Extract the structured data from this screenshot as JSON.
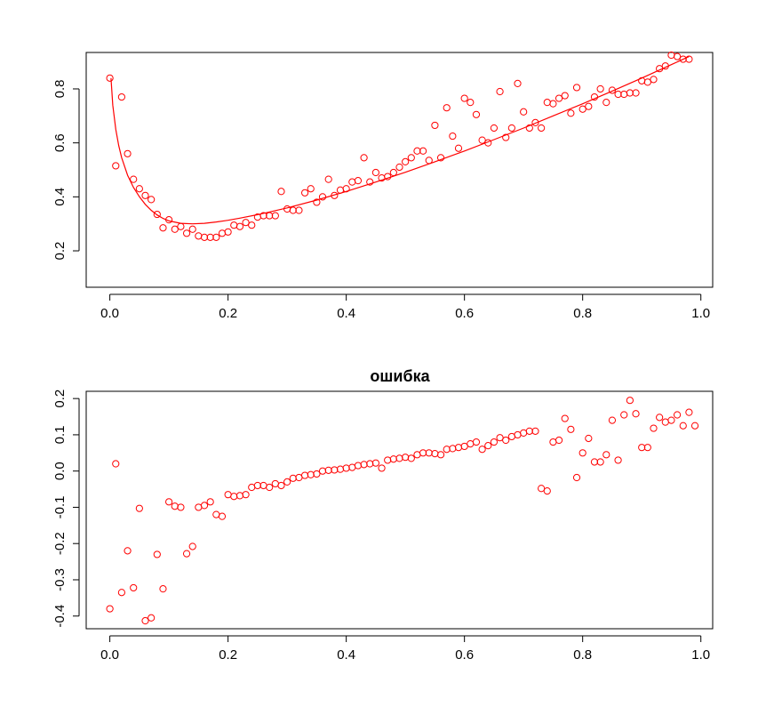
{
  "chart_data": [
    {
      "type": "scatter",
      "title": "",
      "xlabel": "",
      "ylabel": "",
      "xlim": [
        -0.04,
        1.02
      ],
      "ylim": [
        0.065,
        0.935
      ],
      "xticks": [
        "0.0",
        "0.2",
        "0.4",
        "0.6",
        "0.8",
        "1.0"
      ],
      "yticks": [
        "0.2",
        "0.4",
        "0.6",
        "0.8"
      ],
      "xtick_values": [
        0,
        0.2,
        0.4,
        0.6,
        0.8,
        1.0
      ],
      "ytick_values": [
        0.2,
        0.4,
        0.6,
        0.8
      ],
      "grid": false,
      "legend": "none",
      "color": "#ff0000",
      "series": [
        {
          "kind": "points",
          "x": [
            0.0,
            0.01,
            0.02,
            0.03,
            0.04,
            0.05,
            0.06,
            0.07,
            0.08,
            0.09,
            0.1,
            0.11,
            0.12,
            0.13,
            0.14,
            0.15,
            0.16,
            0.17,
            0.18,
            0.19,
            0.2,
            0.21,
            0.22,
            0.23,
            0.24,
            0.25,
            0.26,
            0.27,
            0.28,
            0.29,
            0.3,
            0.31,
            0.32,
            0.33,
            0.34,
            0.35,
            0.36,
            0.37,
            0.38,
            0.39,
            0.4,
            0.41,
            0.42,
            0.43,
            0.44,
            0.45,
            0.46,
            0.47,
            0.48,
            0.49,
            0.5,
            0.51,
            0.52,
            0.53,
            0.54,
            0.55,
            0.56,
            0.57,
            0.58,
            0.59,
            0.6,
            0.61,
            0.62,
            0.63,
            0.64,
            0.65,
            0.66,
            0.67,
            0.68,
            0.69,
            0.7,
            0.71,
            0.72,
            0.73,
            0.74,
            0.75,
            0.76,
            0.77,
            0.78,
            0.79,
            0.8,
            0.81,
            0.82,
            0.83,
            0.84,
            0.85,
            0.86,
            0.87,
            0.88,
            0.89,
            0.9,
            0.91,
            0.92,
            0.93,
            0.94,
            0.95,
            0.96,
            0.97,
            0.98
          ],
          "y": [
            0.84,
            0.515,
            0.77,
            0.56,
            0.465,
            0.43,
            0.405,
            0.39,
            0.335,
            0.285,
            0.315,
            0.28,
            0.29,
            0.265,
            0.28,
            0.255,
            0.25,
            0.25,
            0.25,
            0.265,
            0.27,
            0.295,
            0.29,
            0.305,
            0.295,
            0.325,
            0.33,
            0.33,
            0.33,
            0.42,
            0.355,
            0.35,
            0.35,
            0.415,
            0.43,
            0.38,
            0.4,
            0.465,
            0.405,
            0.425,
            0.43,
            0.455,
            0.46,
            0.545,
            0.455,
            0.49,
            0.47,
            0.475,
            0.49,
            0.51,
            0.53,
            0.545,
            0.57,
            0.57,
            0.535,
            0.665,
            0.545,
            0.73,
            0.625,
            0.58,
            0.765,
            0.75,
            0.705,
            0.61,
            0.6,
            0.655,
            0.79,
            0.62,
            0.655,
            0.82,
            0.715,
            0.655,
            0.675,
            0.655,
            0.75,
            0.745,
            0.765,
            0.775,
            0.71,
            0.805,
            0.725,
            0.735,
            0.77,
            0.8,
            0.75,
            0.795,
            0.78,
            0.78,
            0.785,
            0.785,
            0.83,
            0.825,
            0.835,
            0.875,
            0.885,
            0.925,
            0.92,
            0.91,
            0.91
          ]
        },
        {
          "kind": "line",
          "x": [
            0.002,
            0.005,
            0.01,
            0.015,
            0.02,
            0.03,
            0.04,
            0.05,
            0.06,
            0.07,
            0.08,
            0.09,
            0.1,
            0.12,
            0.14,
            0.16,
            0.18,
            0.2,
            0.22,
            0.25,
            0.3,
            0.35,
            0.4,
            0.45,
            0.5,
            0.55,
            0.6,
            0.65,
            0.7,
            0.75,
            0.8,
            0.85,
            0.9,
            0.95,
            0.98
          ],
          "y": [
            0.84,
            0.74,
            0.65,
            0.59,
            0.545,
            0.48,
            0.435,
            0.4,
            0.372,
            0.35,
            0.333,
            0.32,
            0.311,
            0.302,
            0.3,
            0.302,
            0.307,
            0.313,
            0.321,
            0.334,
            0.359,
            0.388,
            0.42,
            0.455,
            0.491,
            0.53,
            0.57,
            0.612,
            0.655,
            0.7,
            0.745,
            0.792,
            0.84,
            0.89,
            0.92
          ]
        }
      ]
    },
    {
      "type": "scatter",
      "title": "ошибка",
      "xlabel": "",
      "ylabel": "",
      "xlim": [
        -0.04,
        1.02
      ],
      "ylim": [
        -0.435,
        0.22
      ],
      "xticks": [
        "0.0",
        "0.2",
        "0.4",
        "0.6",
        "0.8",
        "1.0"
      ],
      "yticks": [
        "-0.4",
        "-0.3",
        "-0.2",
        "-0.1",
        "0.0",
        "0.1",
        "0.2"
      ],
      "xtick_values": [
        0,
        0.2,
        0.4,
        0.6,
        0.8,
        1.0
      ],
      "ytick_values": [
        -0.4,
        -0.3,
        -0.2,
        -0.1,
        0.0,
        0.1,
        0.2
      ],
      "grid": false,
      "legend": "none",
      "color": "#ff0000",
      "series": [
        {
          "kind": "points",
          "x": [
            0.0,
            0.01,
            0.02,
            0.03,
            0.04,
            0.05,
            0.06,
            0.07,
            0.08,
            0.09,
            0.1,
            0.11,
            0.12,
            0.13,
            0.14,
            0.15,
            0.16,
            0.17,
            0.18,
            0.19,
            0.2,
            0.21,
            0.22,
            0.23,
            0.24,
            0.25,
            0.26,
            0.27,
            0.28,
            0.29,
            0.3,
            0.31,
            0.32,
            0.33,
            0.34,
            0.35,
            0.36,
            0.37,
            0.38,
            0.39,
            0.4,
            0.41,
            0.42,
            0.43,
            0.44,
            0.45,
            0.46,
            0.47,
            0.48,
            0.49,
            0.5,
            0.51,
            0.52,
            0.53,
            0.54,
            0.55,
            0.56,
            0.57,
            0.58,
            0.59,
            0.6,
            0.61,
            0.62,
            0.63,
            0.64,
            0.65,
            0.66,
            0.67,
            0.68,
            0.69,
            0.7,
            0.71,
            0.72,
            0.73,
            0.74,
            0.75,
            0.76,
            0.77,
            0.78,
            0.79,
            0.8,
            0.81,
            0.82,
            0.83,
            0.84,
            0.85,
            0.86,
            0.87,
            0.88,
            0.89,
            0.9,
            0.91,
            0.92,
            0.93,
            0.94,
            0.95,
            0.96,
            0.97,
            0.98,
            0.99
          ],
          "y": [
            -0.38,
            0.02,
            -0.335,
            -0.22,
            -0.322,
            -0.103,
            -0.413,
            -0.405,
            -0.23,
            -0.325,
            -0.085,
            -0.097,
            -0.1,
            -0.228,
            -0.208,
            -0.1,
            -0.095,
            -0.085,
            -0.12,
            -0.125,
            -0.065,
            -0.07,
            -0.068,
            -0.065,
            -0.045,
            -0.04,
            -0.04,
            -0.045,
            -0.035,
            -0.04,
            -0.03,
            -0.02,
            -0.018,
            -0.012,
            -0.01,
            -0.008,
            0.0,
            0.002,
            0.003,
            0.005,
            0.008,
            0.01,
            0.015,
            0.018,
            0.02,
            0.022,
            0.008,
            0.03,
            0.033,
            0.035,
            0.038,
            0.035,
            0.045,
            0.05,
            0.05,
            0.048,
            0.045,
            0.06,
            0.062,
            0.065,
            0.068,
            0.075,
            0.08,
            0.06,
            0.07,
            0.08,
            0.092,
            0.085,
            0.095,
            0.1,
            0.105,
            0.11,
            0.11,
            -0.048,
            -0.055,
            0.08,
            0.085,
            0.145,
            0.115,
            -0.018,
            0.05,
            0.09,
            0.025,
            0.025,
            0.045,
            0.14,
            0.03,
            0.155,
            0.195,
            0.158,
            0.065,
            0.065,
            0.118,
            0.148,
            0.135,
            0.14,
            0.155,
            0.125,
            0.162,
            0.125
          ]
        }
      ]
    }
  ]
}
